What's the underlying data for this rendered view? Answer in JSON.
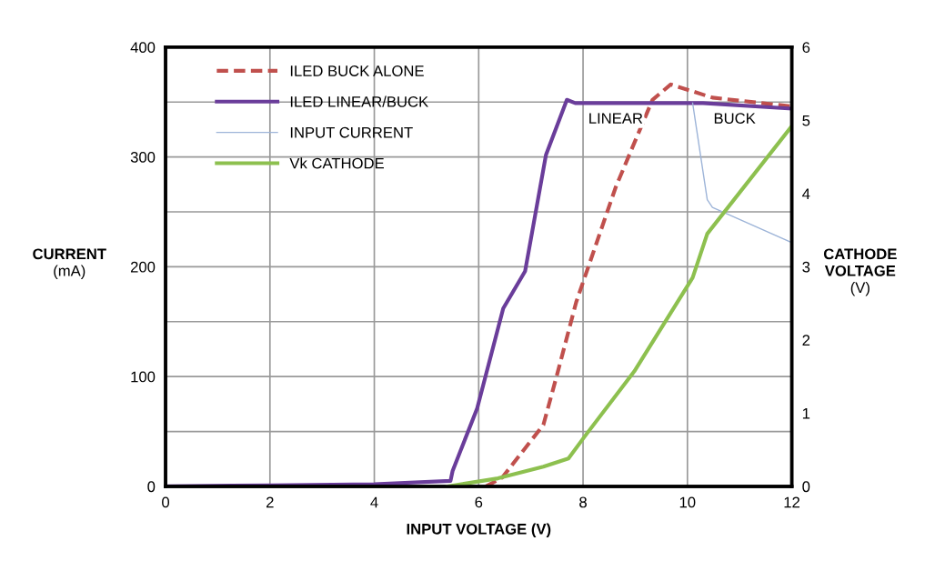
{
  "chart_data": {
    "type": "line",
    "xlabel": "INPUT VOLTAGE (V)",
    "ylabel": "CURRENT\n(mA)",
    "y2label": "CATHODE\nVOLTAGE\n(V)",
    "xlim": [
      0,
      12
    ],
    "xticks": [
      0,
      2,
      4,
      6,
      8,
      10,
      12
    ],
    "ylim": [
      0,
      400
    ],
    "yticks": [
      0,
      {
        "value": 50,
        "label": null
      },
      100,
      {
        "value": 150,
        "label": null
      },
      200,
      {
        "value": 250,
        "label": null
      },
      300,
      {
        "value": 350,
        "label": null
      },
      400
    ],
    "y2lim": [
      0,
      6
    ],
    "y2ticks": [
      0,
      1,
      2,
      3,
      4,
      5,
      6
    ],
    "grid": true,
    "legend": "top left",
    "line_style": "solid",
    "series": [
      {
        "name": "ILED BUCK ALONE",
        "color": "#c0504d",
        "line_style": "dashed",
        "x": [
          6.14,
          6.45,
          7.24,
          7.52,
          7.87,
          8.63,
          9.33,
          9.68,
          10.48,
          12
        ],
        "values": [
          0,
          8,
          56,
          105,
          168,
          273,
          352,
          366,
          354,
          346
        ]
      },
      {
        "name": "ILED LINEAR/BUCK",
        "color": "#6a3d9a",
        "x": [
          0,
          2,
          4,
          5.46,
          5.5,
          5.97,
          6.47,
          6.89,
          7.29,
          7.69,
          7.85,
          10.3,
          12
        ],
        "values": [
          0,
          1,
          2,
          5,
          14,
          71,
          162,
          196,
          302,
          352,
          349,
          349,
          344
        ]
      },
      {
        "name": "INPUT CURRENT",
        "color": "#9db4d8",
        "x": [
          10.1,
          10.38,
          10.48,
          12
        ],
        "values": [
          349,
          261,
          254,
          222
        ]
      },
      {
        "name": "Vk CATHODE",
        "color": "#8dc04f",
        "axis": "y2",
        "x": [
          5.4,
          6.37,
          7.24,
          7.72,
          8.04,
          8.98,
          10.1,
          10.38,
          12
        ],
        "values": [
          0,
          0.11,
          0.27,
          0.38,
          0.69,
          1.57,
          2.85,
          3.45,
          4.92
        ]
      }
    ],
    "annotations": [
      "LINEAR",
      "BUCK"
    ]
  }
}
